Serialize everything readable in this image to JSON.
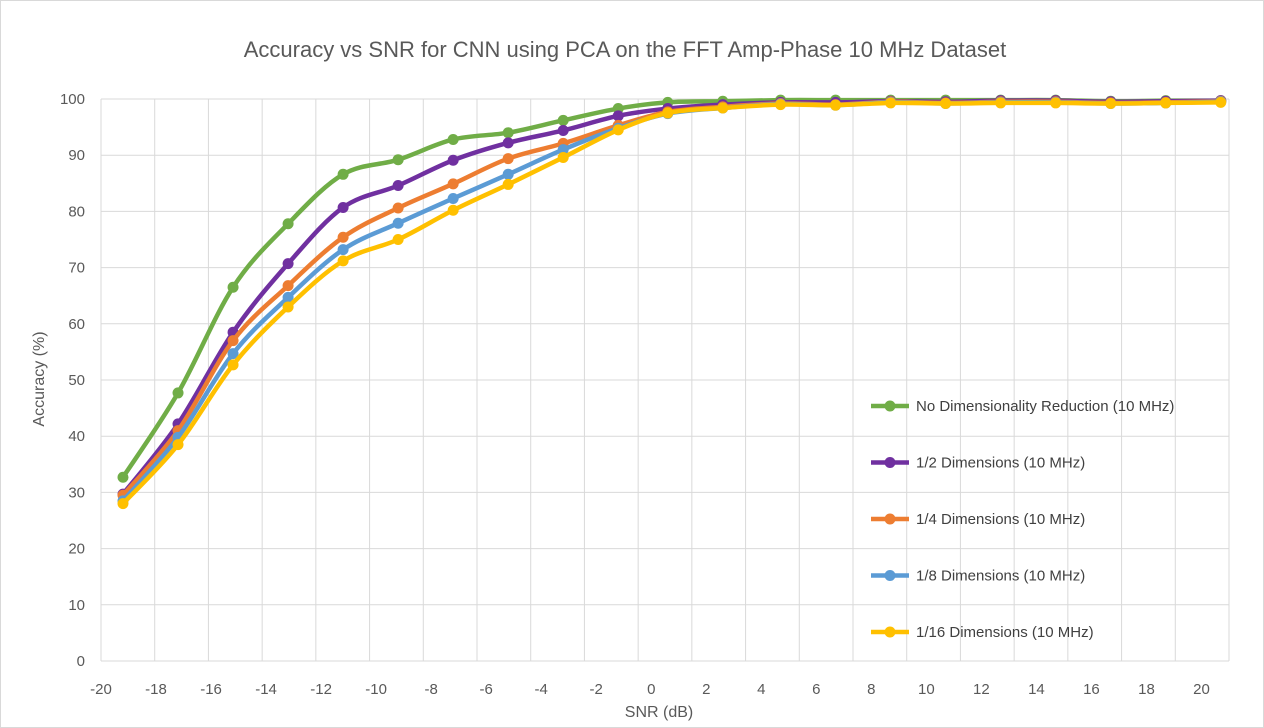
{
  "chart_data": {
    "type": "line",
    "title": "Accuracy vs SNR for CNN using PCA on the FFT Amp-Phase 10 MHz Dataset",
    "xlabel": "SNR (dB)",
    "ylabel": "Accuracy (%)",
    "xlim": [
      -20,
      21
    ],
    "ylim": [
      0,
      100
    ],
    "xticks": [
      -20,
      -18,
      -16,
      -14,
      -12,
      -10,
      -8,
      -6,
      -4,
      -2,
      0,
      2,
      4,
      6,
      8,
      10,
      12,
      14,
      16,
      18,
      20
    ],
    "yticks": [
      0,
      10,
      20,
      30,
      40,
      50,
      60,
      70,
      80,
      90,
      100
    ],
    "grid": true,
    "legend_position": "right",
    "x": [
      -19.2,
      -17.2,
      -15.2,
      -13.2,
      -11.2,
      -9.2,
      -7.2,
      -5.2,
      -3.2,
      -1.2,
      0.6,
      2.6,
      4.7,
      6.7,
      8.7,
      10.7,
      12.7,
      14.7,
      16.7,
      18.7,
      20.7
    ],
    "series": [
      {
        "name": "No Dimensionality Reduction (10 MHz)",
        "color": "#70ad47",
        "values": [
          32.7,
          47.7,
          66.5,
          77.8,
          86.6,
          89.2,
          92.8,
          94.0,
          96.2,
          98.3,
          99.4,
          99.6,
          99.8,
          99.8,
          99.8,
          99.8,
          99.8,
          99.8,
          99.6,
          99.7,
          99.7
        ]
      },
      {
        "name": "1/2 Dimensions (10 MHz)",
        "color": "#7030a0",
        "values": [
          29.7,
          42.2,
          58.5,
          70.7,
          80.7,
          84.6,
          89.1,
          92.2,
          94.4,
          97.0,
          98.3,
          99.0,
          99.4,
          99.4,
          99.6,
          99.5,
          99.7,
          99.7,
          99.5,
          99.6,
          99.7
        ]
      },
      {
        "name": "1/4 Dimensions (10 MHz)",
        "color": "#ed7d31",
        "values": [
          29.5,
          41.0,
          57.0,
          66.8,
          75.4,
          80.6,
          84.9,
          89.4,
          92.1,
          95.3,
          97.7,
          98.6,
          99.2,
          99.0,
          99.5,
          99.3,
          99.5,
          99.5,
          99.3,
          99.4,
          99.6
        ]
      },
      {
        "name": "1/8 Dimensions (10 MHz)",
        "color": "#5b9bd5",
        "values": [
          28.5,
          39.8,
          54.7,
          64.7,
          73.2,
          77.9,
          82.3,
          86.6,
          91.0,
          94.8,
          97.4,
          98.4,
          99.1,
          98.9,
          99.4,
          99.2,
          99.4,
          99.4,
          99.2,
          99.3,
          99.5
        ]
      },
      {
        "name": "1/16 Dimensions (10 MHz)",
        "color": "#ffc000",
        "values": [
          28.0,
          38.5,
          52.7,
          63.0,
          71.2,
          75.0,
          80.2,
          84.8,
          89.6,
          94.5,
          97.5,
          98.4,
          99.0,
          98.9,
          99.3,
          99.2,
          99.3,
          99.3,
          99.2,
          99.3,
          99.4
        ]
      }
    ]
  }
}
